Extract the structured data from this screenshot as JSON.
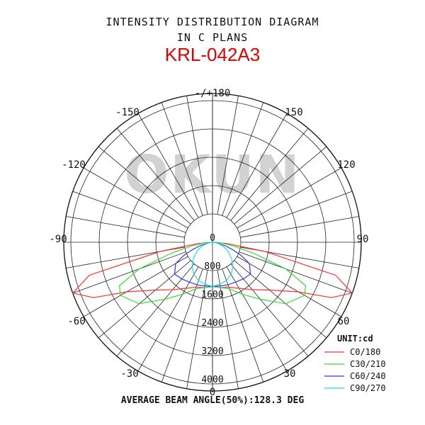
{
  "header": {
    "title_line1": "INTENSITY DISTRIBUTION DIAGRAM",
    "title_line2": "IN C PLANS",
    "model": "KRL-042A3"
  },
  "watermark": "OKUN",
  "footer": {
    "beam_text": "AVERAGE BEAM ANGLE(50%):128.3 DEG"
  },
  "chart_data": {
    "type": "polar",
    "unit_label": "UNIT:cd",
    "radial_range": [
      0,
      4000
    ],
    "radial_ticks": [
      "0",
      "800",
      "1600",
      "2400",
      "3200",
      "4000"
    ],
    "angle_labels": {
      "top": "-/+180",
      "left150": "-150",
      "right150": "150",
      "left120": "-120",
      "right120": "120",
      "left90": "-90",
      "right90": "90",
      "left60": "-60",
      "right60": "60",
      "left30": "-30",
      "right30": "30",
      "bottom": "0"
    },
    "grid": true,
    "legend_position": "bottom-right",
    "series": [
      {
        "name": "C0/180",
        "color": "#ff3333",
        "angles": [
          0,
          10,
          20,
          30,
          40,
          50,
          60,
          65,
          70,
          75,
          80,
          85,
          90
        ],
        "values": [
          1250,
          1300,
          1350,
          1500,
          1750,
          2100,
          2800,
          3700,
          4200,
          3600,
          1500,
          400,
          0
        ]
      },
      {
        "name": "C30/210",
        "color": "#33dd33",
        "angles": [
          0,
          10,
          20,
          30,
          40,
          50,
          60,
          65,
          70,
          75,
          80,
          85,
          90
        ],
        "values": [
          1250,
          1300,
          1400,
          1700,
          2100,
          2700,
          3000,
          2900,
          2200,
          1200,
          600,
          250,
          0
        ]
      },
      {
        "name": "C60/240",
        "color": "#3333ff",
        "angles": [
          0,
          10,
          20,
          30,
          40,
          50,
          60,
          65,
          70,
          75,
          80,
          85,
          90
        ],
        "values": [
          1250,
          1250,
          1280,
          1300,
          1350,
          1400,
          1200,
          900,
          600,
          350,
          150,
          50,
          0
        ]
      },
      {
        "name": "C90/270",
        "color": "#22ddee",
        "angles": [
          0,
          10,
          20,
          30,
          40,
          50,
          60,
          65,
          70,
          75,
          80,
          85,
          90
        ],
        "values": [
          1250,
          1200,
          1150,
          1050,
          900,
          700,
          500,
          400,
          300,
          200,
          100,
          50,
          0
        ]
      }
    ]
  }
}
